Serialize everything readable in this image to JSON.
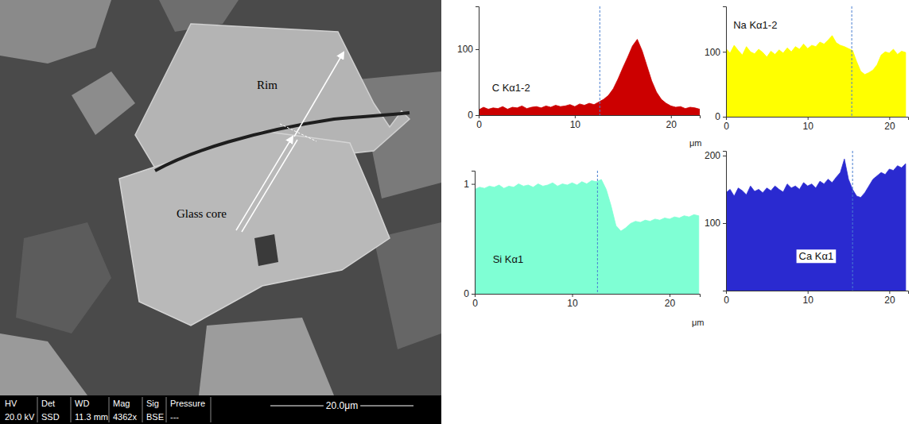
{
  "image_panel": {
    "labels": [
      "Rim",
      "Glass core"
    ],
    "info_bar": {
      "headers": [
        "HV",
        "Det",
        "WD",
        "Mag",
        "Sig",
        "Pressure"
      ],
      "values": [
        "20.0 kV",
        "SSD",
        "11.3 mm",
        "4362x",
        "BSE",
        "---"
      ]
    },
    "scale_bar": "20.0μm"
  },
  "chart_data": [
    {
      "type": "area",
      "title": "C Kα1-2",
      "x_label": "μm",
      "color": "#cc0000",
      "x": [
        0,
        0.5,
        1,
        1.5,
        2,
        2.5,
        3,
        3.5,
        4,
        4.5,
        5,
        5.5,
        6,
        6.5,
        7,
        7.5,
        8,
        8.5,
        9,
        9.5,
        10,
        10.5,
        11,
        11.5,
        12,
        12.5,
        13,
        13.5,
        14,
        14.5,
        15,
        15.5,
        16,
        16.5,
        17,
        17.5,
        18,
        18.5,
        19,
        19.5,
        20,
        20.5,
        21,
        21.5,
        22,
        22.5,
        23
      ],
      "values": [
        8,
        12,
        9,
        11,
        10,
        13,
        9,
        12,
        11,
        14,
        10,
        12,
        13,
        11,
        14,
        12,
        15,
        13,
        14,
        16,
        13,
        17,
        15,
        18,
        16,
        20,
        24,
        30,
        40,
        55,
        72,
        88,
        105,
        115,
        98,
        75,
        52,
        35,
        24,
        18,
        14,
        12,
        13,
        10,
        12,
        11,
        9
      ],
      "divider_x": 12.6,
      "xlim": [
        0,
        23
      ],
      "ylim": [
        0,
        165
      ],
      "xticks": [
        0,
        10,
        20
      ],
      "yticks": [
        0,
        100
      ]
    },
    {
      "type": "area",
      "title": "Na Kα1-2",
      "color": "#ffff00",
      "x": [
        0,
        0.5,
        1,
        1.5,
        2,
        2.5,
        3,
        3.5,
        4,
        4.5,
        5,
        5.5,
        6,
        6.5,
        7,
        7.5,
        8,
        8.5,
        9,
        9.5,
        10,
        10.5,
        11,
        11.5,
        12,
        12.5,
        13,
        13.5,
        14,
        14.5,
        15,
        15.5,
        16,
        16.5,
        17,
        17.5,
        18,
        18.5,
        19,
        19.5,
        20,
        20.5,
        21,
        21.5,
        22
      ],
      "values": [
        105,
        98,
        110,
        102,
        95,
        108,
        100,
        97,
        104,
        99,
        92,
        101,
        96,
        103,
        98,
        106,
        100,
        108,
        104,
        112,
        105,
        110,
        108,
        115,
        112,
        118,
        125,
        114,
        110,
        108,
        105,
        102,
        85,
        70,
        65,
        68,
        72,
        80,
        95,
        100,
        98,
        104,
        96,
        101,
        99
      ],
      "divider_x": 15.4,
      "xlim": [
        0,
        22.3
      ],
      "ylim": [
        0,
        170
      ],
      "xticks": [
        0,
        10,
        20
      ],
      "yticks": [
        0,
        100
      ]
    },
    {
      "type": "area",
      "title": "Si Kα1",
      "x_label": "μm",
      "color": "#7fffd4",
      "x": [
        0,
        0.5,
        1,
        1.5,
        2,
        2.5,
        3,
        3.5,
        4,
        4.5,
        5,
        5.5,
        6,
        6.5,
        7,
        7.5,
        8,
        8.5,
        9,
        9.5,
        10,
        10.5,
        11,
        11.5,
        12,
        12.5,
        13,
        13.5,
        14,
        14.5,
        15,
        15.5,
        16,
        16.5,
        17,
        17.5,
        18,
        18.5,
        19,
        19.5,
        20,
        20.5,
        21,
        21.5,
        22,
        22.5,
        23
      ],
      "values": [
        0.95,
        0.97,
        0.96,
        0.98,
        0.97,
        0.99,
        0.96,
        0.98,
        0.97,
        1.0,
        0.98,
        0.99,
        0.97,
        1.0,
        0.98,
        0.99,
        1.01,
        0.98,
        1.0,
        0.99,
        1.01,
        0.99,
        1.02,
        1.0,
        1.03,
        1.02,
        1.04,
        0.95,
        0.8,
        0.62,
        0.57,
        0.6,
        0.64,
        0.66,
        0.65,
        0.67,
        0.66,
        0.68,
        0.67,
        0.69,
        0.68,
        0.7,
        0.69,
        0.71,
        0.7,
        0.72,
        0.71
      ],
      "divider_x": 12.6,
      "xlim": [
        0,
        23.1
      ],
      "ylim": [
        0,
        1.12
      ],
      "xticks": [
        0,
        10,
        20
      ],
      "yticks": [
        0,
        1
      ]
    },
    {
      "type": "area",
      "title": "Ca Kα1",
      "color": "#2a2ad0",
      "x": [
        0,
        0.5,
        1,
        1.5,
        2,
        2.5,
        3,
        3.5,
        4,
        4.5,
        5,
        5.5,
        6,
        6.5,
        7,
        7.5,
        8,
        8.5,
        9,
        9.5,
        10,
        10.5,
        11,
        11.5,
        12,
        12.5,
        13,
        13.5,
        14,
        14.5,
        15,
        15.5,
        16,
        16.5,
        17,
        17.5,
        18,
        18.5,
        19,
        19.5,
        20,
        20.5,
        21,
        21.5,
        22
      ],
      "values": [
        145,
        150,
        140,
        152,
        148,
        142,
        155,
        147,
        150,
        145,
        152,
        148,
        155,
        150,
        146,
        158,
        152,
        155,
        150,
        160,
        155,
        158,
        152,
        162,
        158,
        165,
        160,
        168,
        175,
        195,
        165,
        150,
        140,
        138,
        145,
        155,
        165,
        170,
        175,
        172,
        180,
        178,
        185,
        182,
        188
      ],
      "divider_x": 15.5,
      "xlim": [
        0,
        22.3
      ],
      "ylim": [
        0,
        207
      ],
      "xticks": [
        0,
        10,
        20
      ],
      "yticks": [
        100,
        200
      ]
    }
  ]
}
